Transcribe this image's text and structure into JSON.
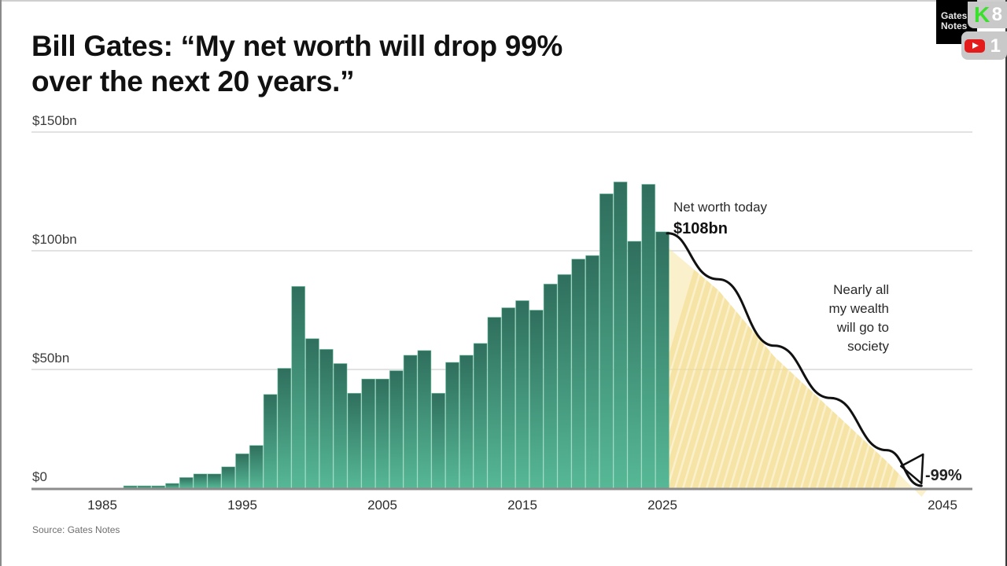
{
  "title_lines": [
    "Bill Gates: “My net worth will drop 99%",
    "over the next 20 years.”"
  ],
  "source": "Source: Gates Notes",
  "overlay": {
    "logo_text_line1": "Gates",
    "logo_text_line2": "Notes",
    "kick_glyph": "K",
    "kick_count": "8",
    "youtube_count": "1"
  },
  "colors": {
    "bar_top": "#2f6f5d",
    "bar_bottom": "#56b896",
    "projection_fill": "#f6e3a2",
    "gridline": "#d9d9d9",
    "axis": "#8c8c8c",
    "curve": "#111111"
  },
  "chart_data": {
    "type": "bar",
    "title": "Bill Gates: “My net worth will drop 99% over the next 20 years.”",
    "xlabel": "",
    "ylabel": "",
    "ylim": [
      0,
      150
    ],
    "xlim": [
      1983,
      2047
    ],
    "grid": true,
    "y_ticks": [
      {
        "value": 0,
        "label": "$0"
      },
      {
        "value": 50,
        "label": "$50bn"
      },
      {
        "value": 100,
        "label": "$100bn"
      },
      {
        "value": 150,
        "label": "$150bn"
      }
    ],
    "x_ticks": [
      {
        "value": 1985,
        "label": "1985"
      },
      {
        "value": 1995,
        "label": "1995"
      },
      {
        "value": 2005,
        "label": "2005"
      },
      {
        "value": 2015,
        "label": "2015"
      },
      {
        "value": 2025,
        "label": "2025"
      },
      {
        "value": 2045,
        "label": "2045"
      }
    ],
    "series": [
      {
        "name": "Net worth ($bn)",
        "x": [
          1987,
          1988,
          1989,
          1990,
          1991,
          1992,
          1993,
          1994,
          1995,
          1996,
          1997,
          1998,
          1999,
          2000,
          2001,
          2002,
          2003,
          2004,
          2005,
          2006,
          2007,
          2008,
          2009,
          2010,
          2011,
          2012,
          2013,
          2014,
          2015,
          2016,
          2017,
          2018,
          2019,
          2020,
          2021,
          2022,
          2023,
          2024,
          2025
        ],
        "values": [
          1,
          1,
          1,
          2,
          4.5,
          6,
          6,
          9,
          14.5,
          18,
          39.5,
          50.5,
          85,
          63,
          58.5,
          52.5,
          40,
          46,
          46,
          49.5,
          56,
          58,
          40,
          53,
          56,
          61,
          72,
          76,
          79,
          75,
          86,
          90,
          96.5,
          98,
          124,
          129,
          104,
          128,
          108
        ]
      },
      {
        "name": "Projected decline (hand-drawn)",
        "type": "line",
        "x": [
          2025,
          2029,
          2033,
          2037,
          2041,
          2043.5
        ],
        "values": [
          108,
          88,
          60,
          38,
          16,
          1
        ]
      }
    ],
    "annotations": [
      {
        "text": "Net worth today",
        "x": 2025,
        "y": 108
      },
      {
        "text": "$108bn",
        "x": 2025,
        "y": 108,
        "bold": true
      },
      {
        "text": "Nearly all my wealth will go to society",
        "lines": [
          "Nearly all",
          "my wealth",
          "will go to",
          "society"
        ]
      },
      {
        "text": "-99%",
        "x": 2044,
        "y": 1,
        "bold": true
      }
    ]
  }
}
